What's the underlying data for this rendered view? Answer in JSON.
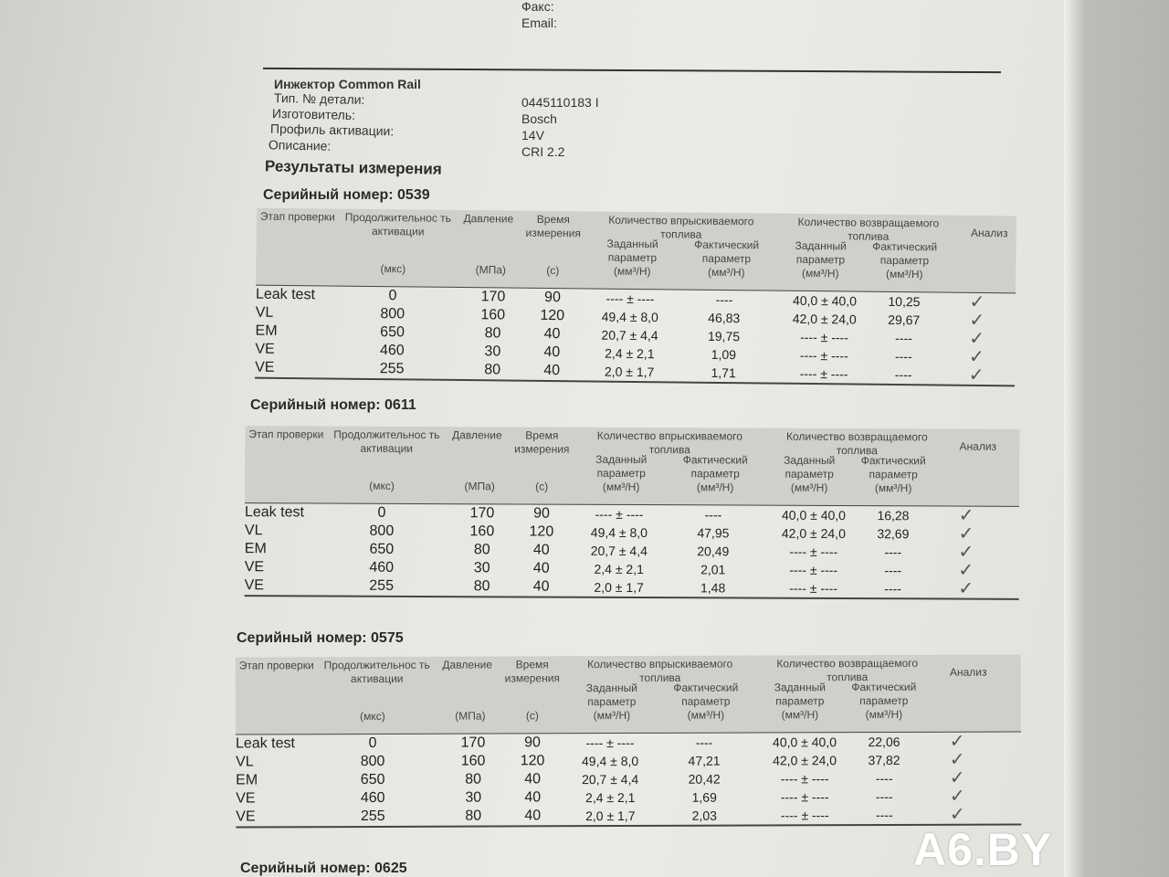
{
  "contact": {
    "fax_label": "Факс:",
    "email_label": "Email:"
  },
  "injector": {
    "title": "Инжектор Common Rail",
    "fields": [
      {
        "label": "Тип. № детали:",
        "value": "0445110183 I"
      },
      {
        "label": "Изготовитель:",
        "value": "Bosch"
      },
      {
        "label": "Профиль активации:",
        "value": "14V"
      },
      {
        "label": "Описание:",
        "value": "CRI 2.2"
      }
    ]
  },
  "results_title": "Результаты измерения",
  "table_header": {
    "stage": "Этап проверки",
    "duration": "Продолжительнос ть активации",
    "duration_unit": "(мкс)",
    "pressure": "Давление",
    "pressure_unit": "(МПа)",
    "time": "Время измерения",
    "time_unit": "(с)",
    "injected": "Количество впрыскиваемого топлива",
    "returned": "Количество возвращаемого топлива",
    "set": "Заданный параметр",
    "actual": "Фактический параметр",
    "unit": "(мм³/Н)",
    "analysis": "Анализ"
  },
  "check_mark": "✓",
  "measurements": [
    {
      "serial": "Серийный номер: 0539",
      "rows": [
        [
          "Leak test",
          "0",
          "170",
          "90",
          "---- ± ----",
          "----",
          "40,0 ± 40,0",
          "10,25"
        ],
        [
          "VL",
          "800",
          "160",
          "120",
          "49,4 ± 8,0",
          "46,83",
          "42,0 ± 24,0",
          "29,67"
        ],
        [
          "EM",
          "650",
          "80",
          "40",
          "20,7 ± 4,4",
          "19,75",
          "---- ± ----",
          "----"
        ],
        [
          "VE",
          "460",
          "30",
          "40",
          "2,4 ± 2,1",
          "1,09",
          "---- ± ----",
          "----"
        ],
        [
          "VE",
          "255",
          "80",
          "40",
          "2,0 ± 1,7",
          "1,71",
          "---- ± ----",
          "----"
        ]
      ]
    },
    {
      "serial": "Серийный номер: 0611",
      "rows": [
        [
          "Leak test",
          "0",
          "170",
          "90",
          "---- ± ----",
          "----",
          "40,0 ± 40,0",
          "16,28"
        ],
        [
          "VL",
          "800",
          "160",
          "120",
          "49,4 ± 8,0",
          "47,95",
          "42,0 ± 24,0",
          "32,69"
        ],
        [
          "EM",
          "650",
          "80",
          "40",
          "20,7 ± 4,4",
          "20,49",
          "---- ± ----",
          "----"
        ],
        [
          "VE",
          "460",
          "30",
          "40",
          "2,4 ± 2,1",
          "2,01",
          "---- ± ----",
          "----"
        ],
        [
          "VE",
          "255",
          "80",
          "40",
          "2,0 ± 1,7",
          "1,48",
          "---- ± ----",
          "----"
        ]
      ]
    },
    {
      "serial": "Серийный номер: 0575",
      "rows": [
        [
          "Leak test",
          "0",
          "170",
          "90",
          "---- ± ----",
          "----",
          "40,0 ± 40,0",
          "22,06"
        ],
        [
          "VL",
          "800",
          "160",
          "120",
          "49,4 ± 8,0",
          "47,21",
          "42,0 ± 24,0",
          "37,82"
        ],
        [
          "EM",
          "650",
          "80",
          "40",
          "20,7 ± 4,4",
          "20,42",
          "---- ± ----",
          "----"
        ],
        [
          "VE",
          "460",
          "30",
          "40",
          "2,4 ± 2,1",
          "1,69",
          "---- ± ----",
          "----"
        ],
        [
          "VE",
          "255",
          "80",
          "40",
          "2,0 ± 1,7",
          "2,03",
          "---- ± ----",
          "----"
        ]
      ]
    },
    {
      "serial": "Серийный номер: 0625",
      "rows": []
    }
  ],
  "watermark": "A6.BY"
}
